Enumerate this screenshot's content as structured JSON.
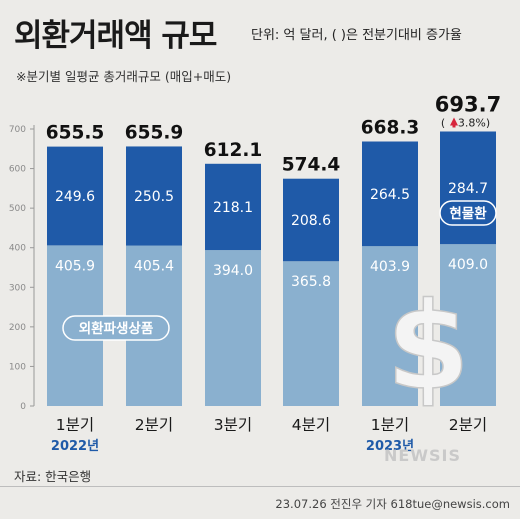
{
  "header": {
    "title": "외환거래액 규모",
    "unit": "단위: 억 달러, ( )은 전분기대비 증가율",
    "subtitle": "※분기별 일평균 총거래규모 (매입+매도)"
  },
  "footer": {
    "source": "자료: 한국은행",
    "credit": "23.07.26 전진우 기자 618tue@newsis.com",
    "logo": "NEWSIS"
  },
  "colors": {
    "spot": "#1f5aa8",
    "derivative": "#8ab0cf",
    "arrow": "#d7263d"
  },
  "chart_data": {
    "type": "bar",
    "stacked": true,
    "categories": [
      "1분기",
      "2분기",
      "3분기",
      "4분기",
      "1분기",
      "2분기"
    ],
    "year_labels": [
      "2022년",
      "",
      "",
      "",
      "2023년",
      ""
    ],
    "series": [
      {
        "name": "외환파생상품",
        "values": [
          405.9,
          405.4,
          394.0,
          365.8,
          403.9,
          409.0
        ],
        "labels": [
          "405.9",
          "405.4",
          "394.0",
          "365.8",
          "403.9",
          "409.0"
        ]
      },
      {
        "name": "현물환",
        "values": [
          249.6,
          250.5,
          218.1,
          208.6,
          264.5,
          284.7
        ],
        "labels": [
          "249.6",
          "250.5",
          "218.1",
          "208.6",
          "264.5",
          "284.7"
        ]
      }
    ],
    "totals": [
      655.5,
      655.9,
      612.1,
      574.4,
      668.3,
      693.7
    ],
    "total_labels": [
      "655.5",
      "655.9",
      "612.1",
      "574.4",
      "668.3",
      "693.7"
    ],
    "annotation": {
      "index": 5,
      "text": "3.8%)",
      "prefix": "(",
      "arrow": "up"
    },
    "ylim": [
      0,
      700
    ],
    "yticks": [
      0,
      100,
      200,
      300,
      400,
      500,
      600,
      700
    ],
    "grid": false
  }
}
